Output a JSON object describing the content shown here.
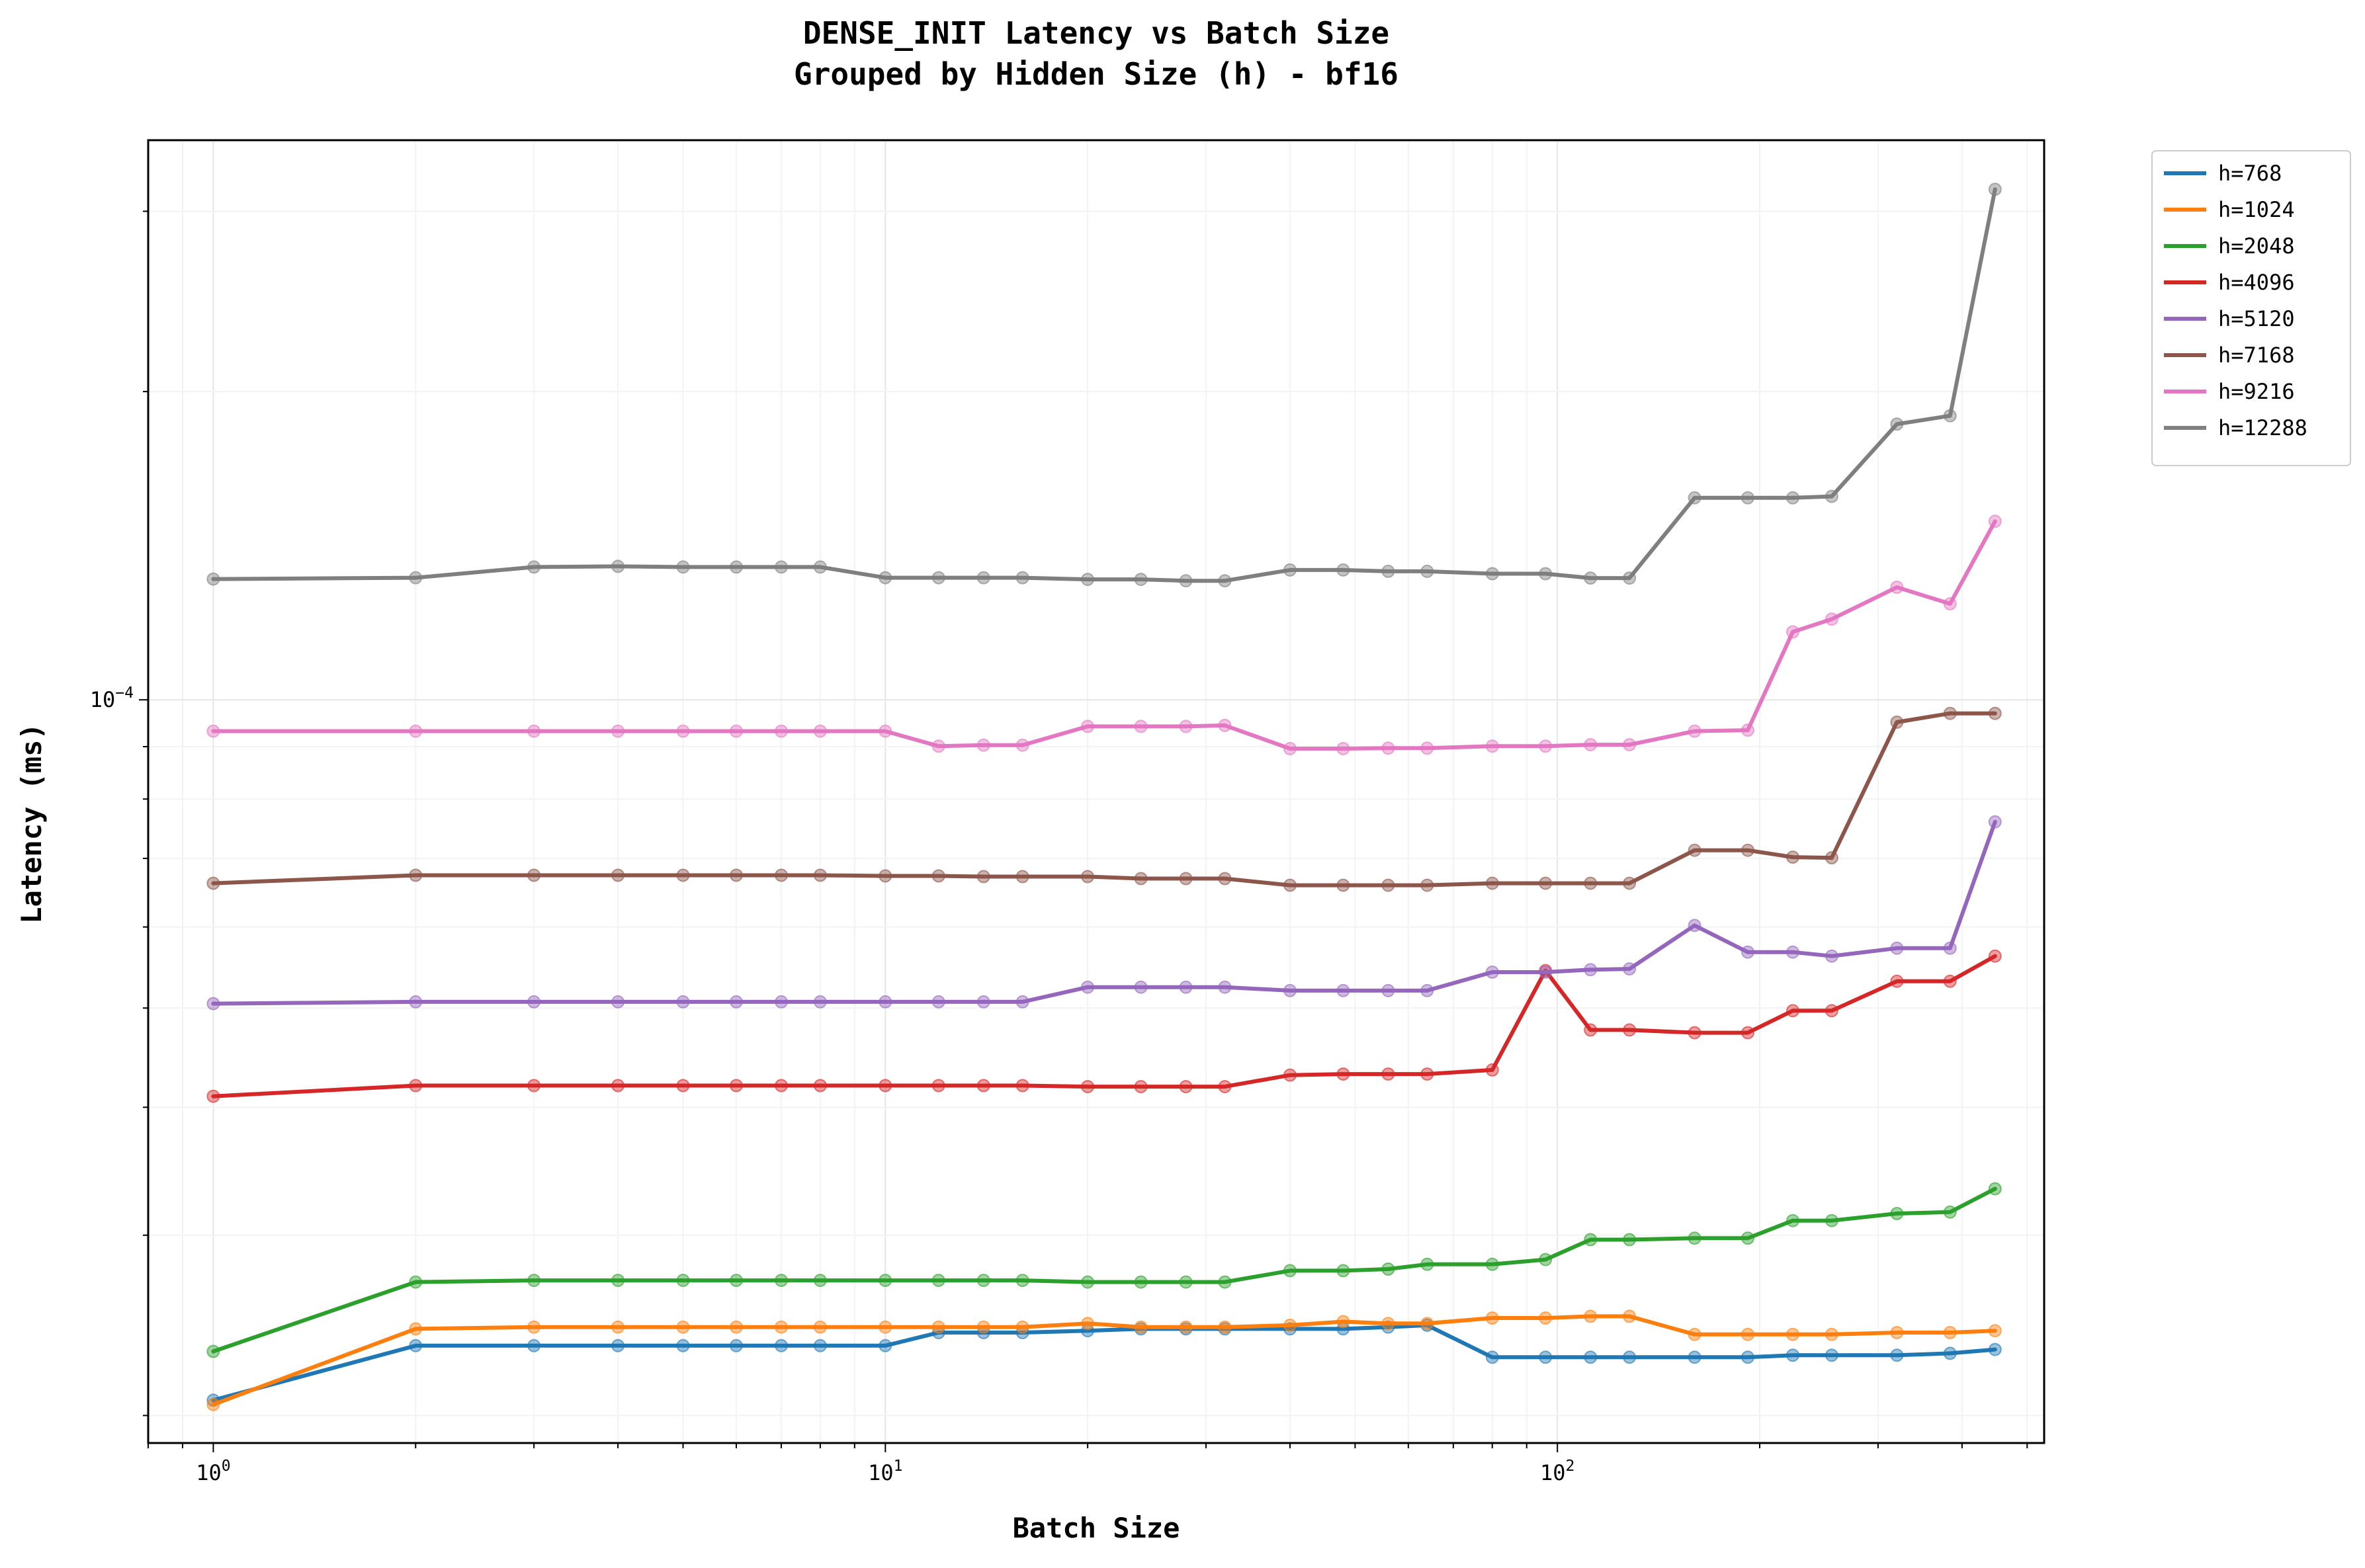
{
  "chart_data": {
    "type": "line",
    "title": "DENSE_INIT Latency vs Batch Size",
    "subtitle": "Grouped by Hidden Size (h) - bf16",
    "xlabel": "Batch Size",
    "ylabel": "Latency (ms)",
    "xscale": "log",
    "yscale": "log",
    "xlim": [
      0.8,
      530
    ],
    "ylim": [
      1.88e-05,
      0.000352
    ],
    "xticks": [
      {
        "value": 1,
        "base": "10",
        "exp": "0"
      },
      {
        "value": 10,
        "base": "10",
        "exp": "1"
      },
      {
        "value": 100,
        "base": "10",
        "exp": "2"
      }
    ],
    "yticks": [
      {
        "value": 0.0001,
        "base": "10",
        "exp": "−4"
      }
    ],
    "grid": true,
    "legend_position": "outside-top-right",
    "x": [
      1,
      2,
      3,
      4,
      5,
      6,
      7,
      8,
      10,
      12,
      14,
      16,
      20,
      24,
      28,
      32,
      40,
      48,
      56,
      64,
      80,
      96,
      112,
      128,
      160,
      192,
      224,
      256,
      320,
      384,
      448
    ],
    "series": [
      {
        "name": "h=768",
        "color": "#1f77b4",
        "values": [
          2.07e-05,
          2.34e-05,
          2.34e-05,
          2.34e-05,
          2.34e-05,
          2.34e-05,
          2.34e-05,
          2.34e-05,
          2.34e-05,
          2.41e-05,
          2.41e-05,
          2.41e-05,
          2.42e-05,
          2.43e-05,
          2.43e-05,
          2.43e-05,
          2.43e-05,
          2.43e-05,
          2.44e-05,
          2.45e-05,
          2.28e-05,
          2.28e-05,
          2.28e-05,
          2.28e-05,
          2.28e-05,
          2.28e-05,
          2.29e-05,
          2.29e-05,
          2.29e-05,
          2.3e-05,
          2.32e-05
        ]
      },
      {
        "name": "h=1024",
        "color": "#ff7f0e",
        "values": [
          2.05e-05,
          2.43e-05,
          2.44e-05,
          2.44e-05,
          2.44e-05,
          2.44e-05,
          2.44e-05,
          2.44e-05,
          2.44e-05,
          2.44e-05,
          2.44e-05,
          2.44e-05,
          2.46e-05,
          2.44e-05,
          2.44e-05,
          2.44e-05,
          2.45e-05,
          2.47e-05,
          2.46e-05,
          2.46e-05,
          2.49e-05,
          2.49e-05,
          2.5e-05,
          2.5e-05,
          2.4e-05,
          2.4e-05,
          2.4e-05,
          2.4e-05,
          2.41e-05,
          2.41e-05,
          2.42e-05
        ]
      },
      {
        "name": "h=2048",
        "color": "#2ca02c",
        "values": [
          2.31e-05,
          2.7e-05,
          2.71e-05,
          2.71e-05,
          2.71e-05,
          2.71e-05,
          2.71e-05,
          2.71e-05,
          2.71e-05,
          2.71e-05,
          2.71e-05,
          2.71e-05,
          2.7e-05,
          2.7e-05,
          2.7e-05,
          2.7e-05,
          2.77e-05,
          2.77e-05,
          2.78e-05,
          2.81e-05,
          2.81e-05,
          2.84e-05,
          2.97e-05,
          2.97e-05,
          2.98e-05,
          2.98e-05,
          3.1e-05,
          3.1e-05,
          3.15e-05,
          3.16e-05,
          3.33e-05
        ]
      },
      {
        "name": "h=4096",
        "color": "#d62728",
        "values": [
          4.1e-05,
          4.2e-05,
          4.2e-05,
          4.2e-05,
          4.2e-05,
          4.2e-05,
          4.2e-05,
          4.2e-05,
          4.2e-05,
          4.2e-05,
          4.2e-05,
          4.2e-05,
          4.19e-05,
          4.19e-05,
          4.19e-05,
          4.19e-05,
          4.3e-05,
          4.31e-05,
          4.31e-05,
          4.31e-05,
          4.35e-05,
          5.44e-05,
          4.76e-05,
          4.76e-05,
          4.73e-05,
          4.73e-05,
          4.97e-05,
          4.97e-05,
          5.31e-05,
          5.31e-05,
          5.62e-05
        ]
      },
      {
        "name": "h=5120",
        "color": "#9467bd",
        "values": [
          5.05e-05,
          5.07e-05,
          5.07e-05,
          5.07e-05,
          5.07e-05,
          5.07e-05,
          5.07e-05,
          5.07e-05,
          5.07e-05,
          5.07e-05,
          5.07e-05,
          5.07e-05,
          5.24e-05,
          5.24e-05,
          5.24e-05,
          5.24e-05,
          5.2e-05,
          5.2e-05,
          5.2e-05,
          5.2e-05,
          5.42e-05,
          5.42e-05,
          5.45e-05,
          5.46e-05,
          6.02e-05,
          5.67e-05,
          5.67e-05,
          5.62e-05,
          5.72e-05,
          5.72e-05,
          7.6e-05
        ]
      },
      {
        "name": "h=7168",
        "color": "#8c564b",
        "values": [
          6.62e-05,
          6.74e-05,
          6.74e-05,
          6.74e-05,
          6.74e-05,
          6.74e-05,
          6.74e-05,
          6.74e-05,
          6.73e-05,
          6.73e-05,
          6.72e-05,
          6.72e-05,
          6.72e-05,
          6.69e-05,
          6.69e-05,
          6.69e-05,
          6.59e-05,
          6.59e-05,
          6.59e-05,
          6.59e-05,
          6.62e-05,
          6.62e-05,
          6.62e-05,
          6.62e-05,
          7.13e-05,
          7.13e-05,
          7.02e-05,
          7.01e-05,
          9.51e-05,
          9.7e-05,
          9.7e-05
        ]
      },
      {
        "name": "h=9216",
        "color": "#e377c2",
        "values": [
          9.32e-05,
          9.32e-05,
          9.32e-05,
          9.32e-05,
          9.32e-05,
          9.32e-05,
          9.32e-05,
          9.32e-05,
          9.32e-05,
          9.01e-05,
          9.03e-05,
          9.03e-05,
          9.42e-05,
          9.42e-05,
          9.42e-05,
          9.44e-05,
          8.96e-05,
          8.96e-05,
          8.97e-05,
          8.97e-05,
          9.01e-05,
          9.01e-05,
          9.04e-05,
          9.04e-05,
          9.32e-05,
          9.34e-05,
          0.0001165,
          0.0001199,
          0.0001288,
          0.0001241,
          0.0001494
        ]
      },
      {
        "name": "h=12288",
        "color": "#7f7f7f",
        "values": [
          0.0001312,
          0.0001316,
          0.0001348,
          0.000135,
          0.0001348,
          0.0001348,
          0.0001348,
          0.0001348,
          0.0001316,
          0.0001316,
          0.0001316,
          0.0001316,
          0.0001311,
          0.0001311,
          0.0001307,
          0.0001307,
          0.0001339,
          0.0001339,
          0.0001335,
          0.0001335,
          0.0001328,
          0.0001328,
          0.0001315,
          0.0001315,
          0.0001575,
          0.0001575,
          0.0001575,
          0.000158,
          0.0001859,
          0.0001894,
          0.0003152
        ]
      }
    ]
  }
}
